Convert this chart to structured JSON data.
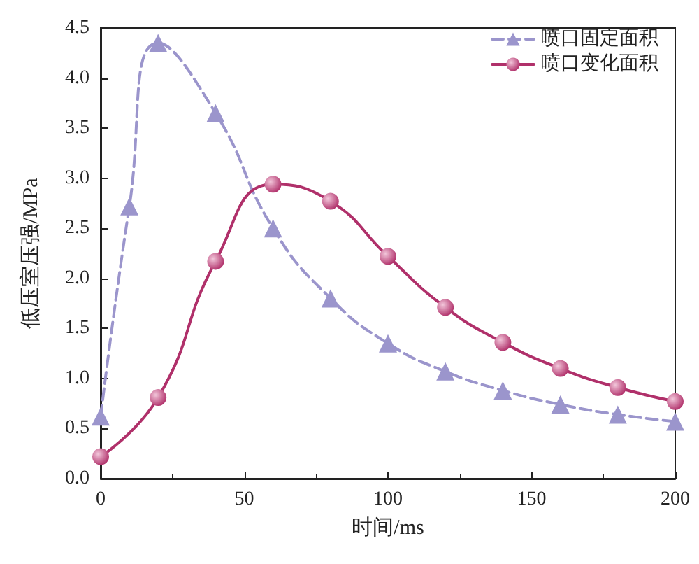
{
  "chart_data": {
    "type": "line",
    "xlabel": "时间/ms",
    "ylabel": "低压室压强/MPa",
    "series": [
      {
        "name": "喷口固定面积",
        "color": "#9b95cc",
        "marker": "triangle",
        "line_style": "dashed",
        "x": [
          0,
          10,
          20,
          40,
          60,
          80,
          100,
          120,
          140,
          160,
          180,
          200
        ],
        "values": [
          0.62,
          2.72,
          4.35,
          3.65,
          2.5,
          1.8,
          1.35,
          1.07,
          0.88,
          0.74,
          0.64,
          0.57
        ]
      },
      {
        "name": "喷口变化面积",
        "color": "#b0306a",
        "marker": "circle",
        "line_style": "solid",
        "x": [
          0,
          20,
          40,
          60,
          80,
          100,
          120,
          140,
          160,
          180,
          200
        ],
        "values": [
          0.22,
          0.81,
          2.17,
          2.94,
          2.77,
          2.22,
          1.71,
          1.36,
          1.1,
          0.91,
          0.77
        ]
      }
    ],
    "xlim": [
      0,
      200
    ],
    "xticks": [
      0,
      50,
      100,
      150,
      200
    ],
    "ylim": [
      0,
      4.5
    ],
    "yticks": [
      {
        "value": 0,
        "label": "0.0"
      },
      {
        "value": 0.5,
        "label": "0.5"
      },
      {
        "value": 1,
        "label": "1.0"
      },
      {
        "value": 1.5,
        "label": "1.5"
      },
      {
        "value": 2,
        "label": "2.0"
      },
      {
        "value": 2.5,
        "label": "2.5"
      },
      {
        "value": 3,
        "label": "3.0"
      },
      {
        "value": 3.5,
        "label": "3.5"
      },
      {
        "value": 4,
        "label": "4.0"
      },
      {
        "value": 4.5,
        "label": "4.5"
      }
    ],
    "grid": false,
    "legend": "top right"
  }
}
